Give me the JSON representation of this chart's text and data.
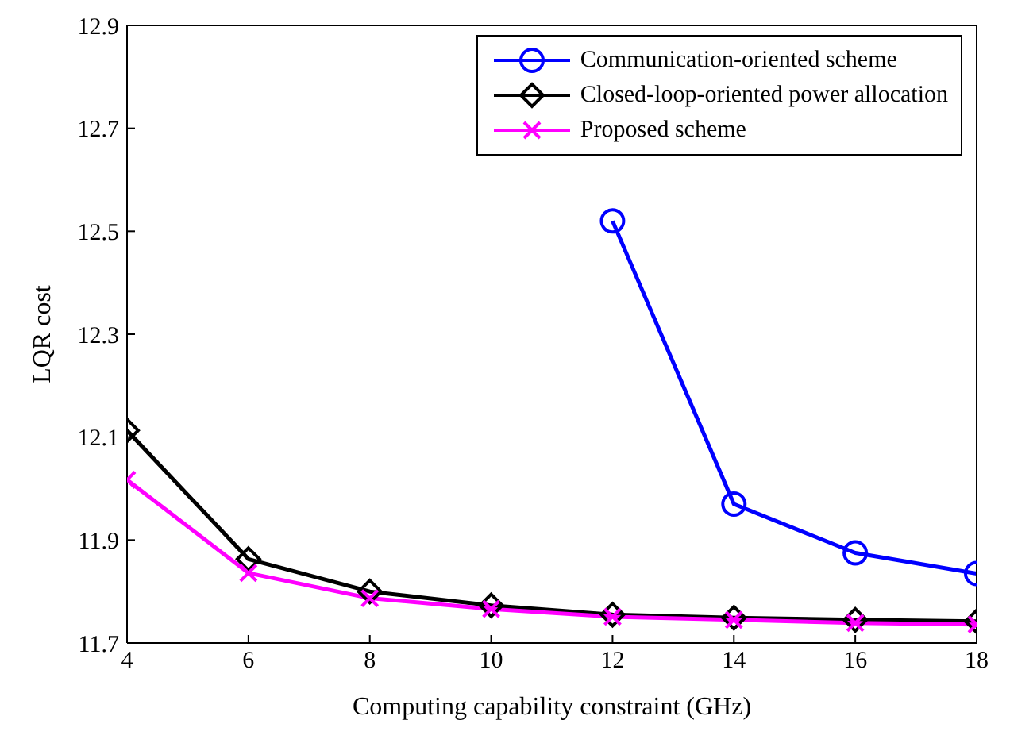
{
  "chart_data": {
    "type": "line",
    "xlabel": "Computing capability constraint (GHz)",
    "ylabel": "LQR cost",
    "x": [
      4,
      6,
      8,
      10,
      12,
      14,
      16,
      18
    ],
    "series": [
      {
        "name": "Communication-oriented scheme",
        "color": "#0000ff",
        "marker": "circle",
        "values": [
          null,
          null,
          null,
          null,
          12.52,
          11.97,
          11.875,
          11.835
        ]
      },
      {
        "name": "Closed-loop-oriented power allocation",
        "color": "#000000",
        "marker": "diamond",
        "values": [
          12.113,
          11.863,
          11.8,
          11.773,
          11.755,
          11.749,
          11.745,
          11.742
        ]
      },
      {
        "name": "Proposed scheme",
        "color": "#ff00ff",
        "marker": "cross",
        "values": [
          12.017,
          11.836,
          11.787,
          11.766,
          11.751,
          11.745,
          11.739,
          11.736
        ]
      }
    ],
    "xlim": [
      4,
      18
    ],
    "xticks": [
      4,
      6,
      8,
      10,
      12,
      14,
      16,
      18
    ],
    "ylim": [
      11.7,
      12.9
    ],
    "yticks": [
      11.7,
      11.9,
      12.1,
      12.3,
      12.5,
      12.7,
      12.9
    ],
    "grid": false,
    "legend": "top right",
    "line_style": "solid"
  }
}
